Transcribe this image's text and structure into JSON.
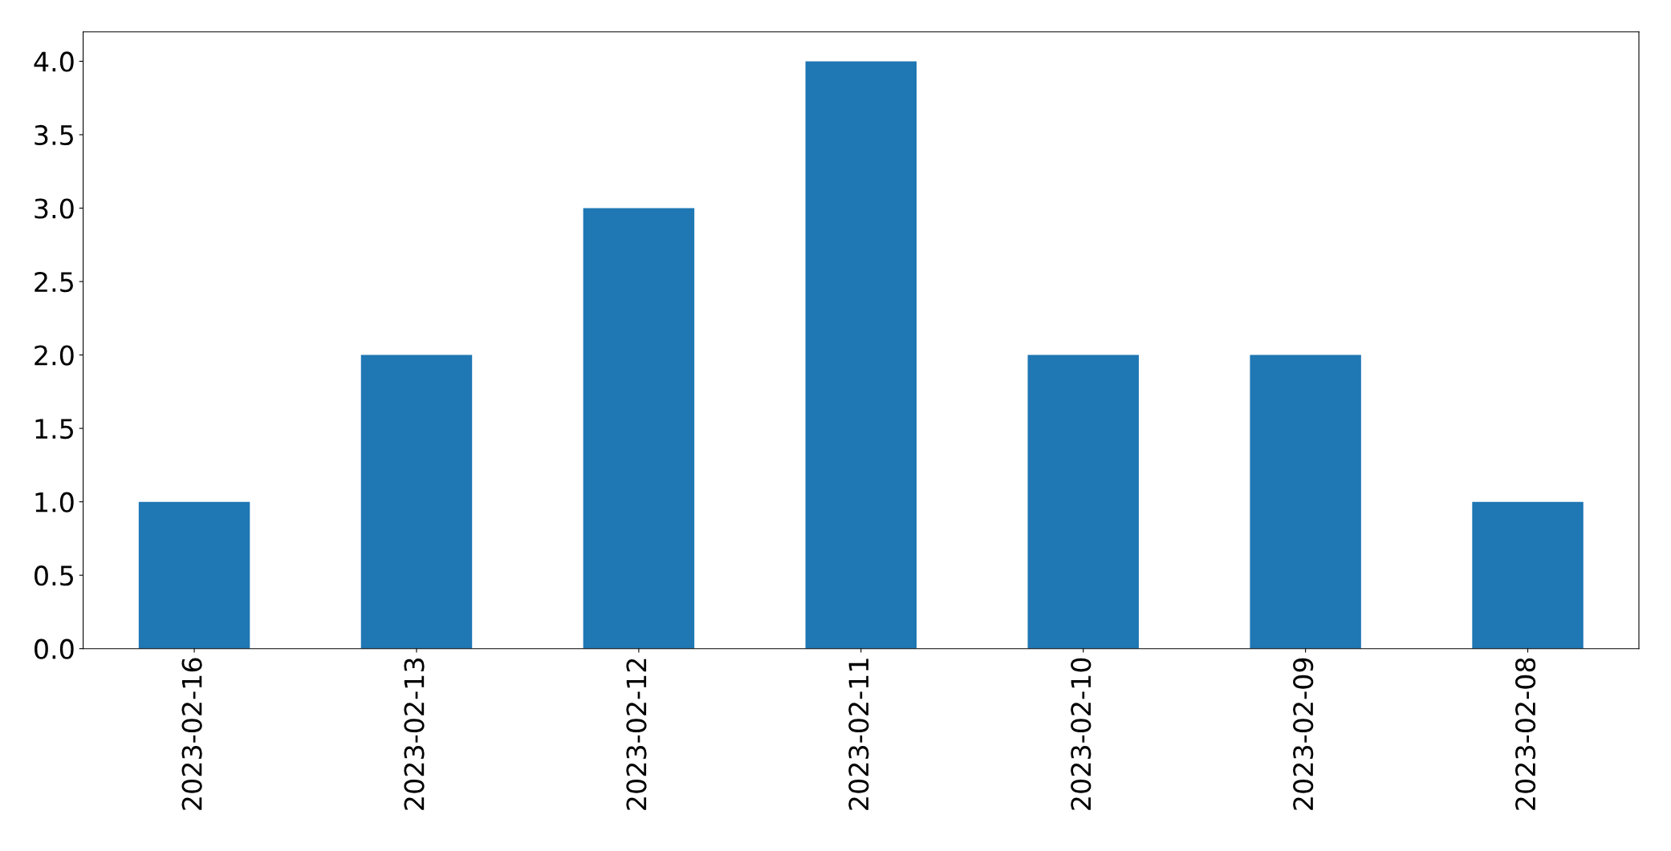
{
  "chart_data": {
    "type": "bar",
    "categories": [
      "2023-02-16",
      "2023-02-13",
      "2023-02-12",
      "2023-02-11",
      "2023-02-10",
      "2023-02-09",
      "2023-02-08"
    ],
    "values": [
      1,
      2,
      3,
      4,
      2,
      2,
      1
    ],
    "color": "#1f77b4",
    "ylim": [
      0,
      4.2
    ],
    "yticks": [
      {
        "value": 0,
        "label": "0.0"
      },
      {
        "value": 0.5,
        "label": "0.5"
      },
      {
        "value": 1,
        "label": "1.0"
      },
      {
        "value": 1.5,
        "label": "1.5"
      },
      {
        "value": 2,
        "label": "2.0"
      },
      {
        "value": 2.5,
        "label": "2.5"
      },
      {
        "value": 3,
        "label": "3.0"
      },
      {
        "value": 3.5,
        "label": "3.5"
      },
      {
        "value": 4,
        "label": "4.0"
      }
    ],
    "grid": false,
    "legend": false
  }
}
